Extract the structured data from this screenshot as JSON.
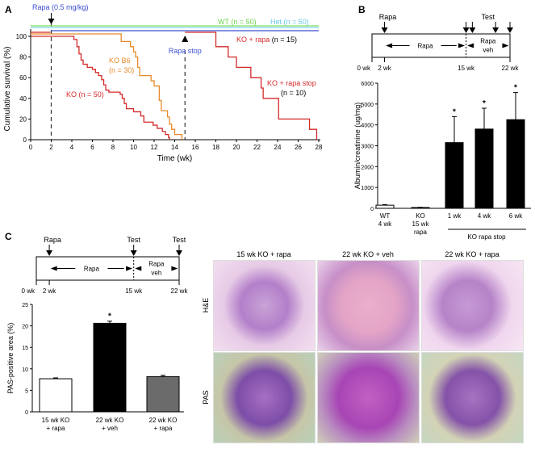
{
  "panels": {
    "a": "A",
    "b": "B",
    "c": "C"
  },
  "chart_data": [
    {
      "type": "line",
      "panel": "A",
      "xlabel": "Time  (wk)",
      "ylabel": "Cumulative survival (%)",
      "xlim": [
        0,
        28
      ],
      "ylim": [
        0,
        100
      ],
      "xticks": [
        "0",
        "2",
        "4",
        "6",
        "8",
        "10",
        "12",
        "14",
        "16",
        "18",
        "20",
        "22",
        "24",
        "26",
        "28"
      ],
      "yticks": [
        "0",
        "20",
        "40",
        "60",
        "80",
        "100"
      ],
      "annotations": {
        "rapa_start": "Rapa (0.5 mg/kg)",
        "rapa_stop": "Rapa stop"
      },
      "series": [
        {
          "name": "WT",
          "n_label": "(n = 50)",
          "color": "#7fe05a",
          "steps": [
            [
              0,
              100
            ],
            [
              28,
              100
            ]
          ]
        },
        {
          "name": "Het",
          "n_label": "(n = 50)",
          "color": "#7fd8f0",
          "steps": [
            [
              0,
              100
            ],
            [
              28,
              100
            ]
          ]
        },
        {
          "name": "KO + rapa",
          "n_label": "(n = 15)",
          "color": "#3b4fd0",
          "steps": [
            [
              2,
              100
            ],
            [
              28,
              100
            ]
          ]
        },
        {
          "name": "KO + rapa stop",
          "n_label": "(n = 10)",
          "color": "#d42a2a",
          "steps": [
            [
              15,
              100
            ],
            [
              18,
              90
            ],
            [
              19.2,
              80
            ],
            [
              20,
              70
            ],
            [
              21.4,
              60
            ],
            [
              22.4,
              50
            ],
            [
              22.6,
              40
            ],
            [
              24.1,
              20
            ],
            [
              27.1,
              10
            ],
            [
              27.8,
              0
            ]
          ]
        },
        {
          "name": "KO B6",
          "n_label": "(n = 30)",
          "color": "#e88a2a",
          "steps": [
            [
              0,
              100
            ],
            [
              8.8,
              95
            ],
            [
              9.7,
              90
            ],
            [
              10,
              85
            ],
            [
              10.2,
              80
            ],
            [
              10.4,
              70
            ],
            [
              10.6,
              62
            ],
            [
              11.7,
              57
            ],
            [
              12,
              52
            ],
            [
              12.5,
              38
            ],
            [
              12.7,
              28
            ],
            [
              13.3,
              22
            ],
            [
              13.5,
              15
            ],
            [
              13.7,
              10
            ],
            [
              14,
              5
            ],
            [
              14.7,
              0
            ]
          ]
        },
        {
          "name": "KO",
          "n_label": "(n = 50)",
          "color": "#d42a2a",
          "steps": [
            [
              0,
              100
            ],
            [
              4.2,
              97
            ],
            [
              4.5,
              90
            ],
            [
              4.7,
              83
            ],
            [
              4.9,
              77
            ],
            [
              5.1,
              73
            ],
            [
              5.5,
              70
            ],
            [
              6,
              68
            ],
            [
              6.3,
              65
            ],
            [
              6.6,
              62
            ],
            [
              6.9,
              58
            ],
            [
              7.1,
              53
            ],
            [
              7.3,
              48
            ],
            [
              7.6,
              46
            ],
            [
              8.7,
              44
            ],
            [
              8.9,
              40
            ],
            [
              9.1,
              35
            ],
            [
              9.3,
              30
            ],
            [
              10,
              27
            ],
            [
              10.7,
              23
            ],
            [
              11,
              17
            ],
            [
              11.9,
              14
            ],
            [
              12.3,
              11
            ],
            [
              12.8,
              8
            ],
            [
              13.1,
              5
            ],
            [
              13.4,
              2
            ],
            [
              13.5,
              0
            ]
          ]
        }
      ]
    },
    {
      "type": "bar",
      "panel": "B",
      "ylabel": "Albumin/creatinine (ug/mg)",
      "ylim": [
        0,
        6000
      ],
      "yticks": [
        "0",
        "1000",
        "2000",
        "3000",
        "4000",
        "5000",
        "6000"
      ],
      "categories": [
        [
          "WT",
          "4 wk"
        ],
        [
          "KO",
          "15 wk",
          "rapa"
        ],
        [
          "1 wk"
        ],
        [
          "4 wk"
        ],
        [
          "6 wk"
        ]
      ],
      "group_label": "KO rapa stop",
      "values": [
        150,
        40,
        3150,
        3800,
        4250
      ],
      "errors": [
        30,
        10,
        1250,
        1000,
        1300
      ],
      "significant": [
        false,
        false,
        true,
        true,
        true
      ],
      "fills": [
        "#ffffff",
        "#ffffff",
        "#000000",
        "#000000",
        "#000000"
      ]
    },
    {
      "type": "bar",
      "panel": "C",
      "ylabel": "PAS-positive area (%)",
      "ylim": [
        0,
        25
      ],
      "yticks": [
        "0",
        "5",
        "10",
        "15",
        "20",
        "25"
      ],
      "categories": [
        [
          "15 wk KO",
          "+ rapa"
        ],
        [
          "22 wk KO",
          "+ veh"
        ],
        [
          "22 wk KO",
          "+ rapa"
        ]
      ],
      "values": [
        7.7,
        20.6,
        8.2
      ],
      "errors": [
        0.2,
        0.5,
        0.3
      ],
      "significant": [
        false,
        true,
        false
      ],
      "fills": [
        "#ffffff",
        "#000000",
        "#6b6b6b"
      ]
    }
  ],
  "timeline_b": {
    "rapa": "Rapa",
    "test": "Test",
    "phase1": "Rapa",
    "phase2a": "Rapa",
    "phase2b": "veh",
    "ticks": [
      "0 wk",
      "2 wk",
      "15 wk",
      "22 wk"
    ]
  },
  "timeline_c": {
    "rapa": "Rapa",
    "test1": "Test",
    "test2": "Test",
    "phase1": "Rapa",
    "phase2a": "Rapa",
    "phase2b": "veh",
    "ticks": [
      "0 wk",
      "2 wk",
      "15 wk",
      "22 wk"
    ]
  },
  "micrographs": {
    "columns": [
      "15 wk KO + rapa",
      "22 wk KO + veh",
      "22 wk KO + rapa"
    ],
    "rows": [
      "H&E",
      "PAS"
    ]
  }
}
